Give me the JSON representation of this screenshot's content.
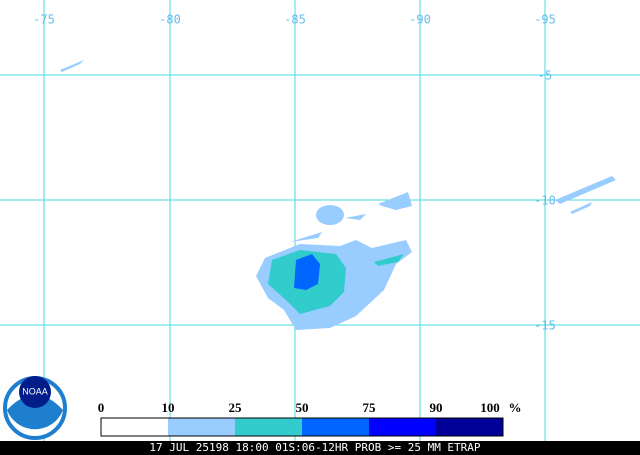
{
  "map": {
    "lon_labels": [
      "-75",
      "-80",
      "-85",
      "-90",
      "-95"
    ],
    "lat_labels": [
      "-5",
      "-10",
      "-15"
    ],
    "legend": {
      "ticks": [
        0,
        10,
        25,
        50,
        75,
        90,
        100
      ],
      "unit": "%"
    },
    "logo": "NOAA",
    "footer": "17 JUL 25198 18:00 01S:06-12HR PROB >= 25 MM ETRAP"
  }
}
